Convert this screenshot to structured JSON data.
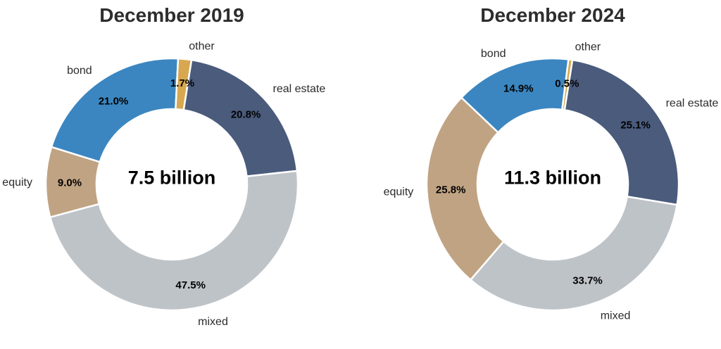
{
  "figure": {
    "background": "#ffffff",
    "title_color": "#2d2d2d",
    "category_label_color": "#2b2b2b",
    "percent_label_color": "#000000",
    "slice_gap_color": "#ffffff"
  },
  "chart_data": [
    {
      "type": "pie",
      "subtype": "donut",
      "title": "December 2019",
      "center_label": "7.5 billion",
      "direction": "clockwise",
      "start_angle_deg_from_top": 9,
      "legend_position": "none",
      "categories": [
        "real estate",
        "mixed",
        "equity",
        "bond",
        "other"
      ],
      "values": [
        20.8,
        47.5,
        9.0,
        21.0,
        1.7
      ],
      "value_labels": [
        "20.8%",
        "47.5%",
        "9.0%",
        "21.0%",
        "1.7%"
      ],
      "colors": [
        "#4a5b7c",
        "#bec3c8",
        "#c0a383",
        "#3b86c0",
        "#d8a850"
      ]
    },
    {
      "type": "pie",
      "subtype": "donut",
      "title": "December 2024",
      "center_label": "11.3 billion",
      "direction": "clockwise",
      "start_angle_deg_from_top": 9,
      "legend_position": "none",
      "categories": [
        "real estate",
        "mixed",
        "equity",
        "bond",
        "other"
      ],
      "values": [
        25.1,
        33.7,
        25.8,
        14.9,
        0.5
      ],
      "value_labels": [
        "25.1%",
        "33.7%",
        "25.8%",
        "14.9%",
        "0.5%"
      ],
      "colors": [
        "#4a5b7c",
        "#bec3c8",
        "#c0a383",
        "#3b86c0",
        "#d8a850"
      ]
    }
  ]
}
